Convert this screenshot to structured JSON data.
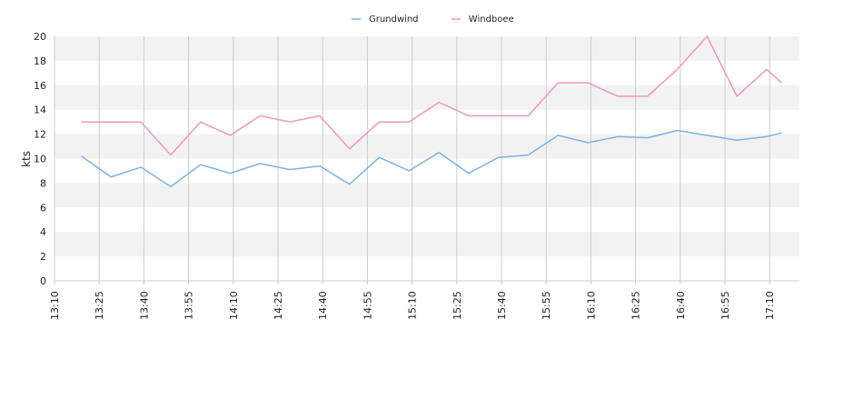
{
  "chart_data": {
    "type": "line",
    "ylabel": "kts",
    "xlabel": "",
    "ylim": [
      0,
      20
    ],
    "yticks": [
      0,
      2,
      4,
      6,
      8,
      10,
      12,
      14,
      16,
      18,
      20
    ],
    "x_range": [
      "13:10",
      "17:20"
    ],
    "x_ticks": [
      "13:10",
      "13:25",
      "13:40",
      "13:55",
      "14:10",
      "14:25",
      "14:40",
      "14:55",
      "15:10",
      "15:25",
      "15:40",
      "15:55",
      "16:10",
      "16:25",
      "16:40",
      "16:55",
      "17:10"
    ],
    "grid": "vertical lines at ticks, alternating horizontal bands",
    "legend_position": "top-center",
    "series": [
      {
        "name": "Grundwind",
        "color": "#7ab3e8",
        "x": [
          "13:19",
          "13:29",
          "13:39",
          "13:49",
          "13:59",
          "14:09",
          "14:19",
          "14:29",
          "14:39",
          "14:49",
          "14:59",
          "15:09",
          "15:19",
          "15:29",
          "15:39",
          "15:49",
          "15:59",
          "16:09",
          "16:19",
          "16:29",
          "16:39",
          "16:49",
          "16:59",
          "17:09",
          "17:14"
        ],
        "values": [
          10.2,
          8.5,
          9.3,
          7.7,
          9.5,
          8.8,
          9.6,
          9.1,
          9.4,
          7.9,
          10.1,
          9.0,
          10.5,
          8.8,
          10.1,
          10.3,
          11.9,
          11.3,
          11.8,
          11.7,
          12.3,
          11.9,
          11.5,
          11.8,
          12.1
        ]
      },
      {
        "name": "Windboee",
        "color": "#f095bf",
        "x": [
          "13:19",
          "13:29",
          "13:39",
          "13:49",
          "13:59",
          "14:09",
          "14:19",
          "14:29",
          "14:39",
          "14:49",
          "14:59",
          "15:09",
          "15:19",
          "15:29",
          "15:39",
          "15:49",
          "15:59",
          "16:09",
          "16:19",
          "16:29",
          "16:39",
          "16:49",
          "16:59",
          "17:09",
          "17:14"
        ],
        "values": [
          13.0,
          13.0,
          13.0,
          10.3,
          13.0,
          11.9,
          13.5,
          13.0,
          13.5,
          10.8,
          13.0,
          13.0,
          14.6,
          13.5,
          13.5,
          13.5,
          16.2,
          16.2,
          15.1,
          15.1,
          17.3,
          20.0,
          15.1,
          17.3,
          16.2
        ]
      }
    ]
  },
  "colors": {
    "band": "#f2f2f2",
    "gridline": "#cccccc",
    "axis": "#cccccc",
    "text": "#222222"
  }
}
